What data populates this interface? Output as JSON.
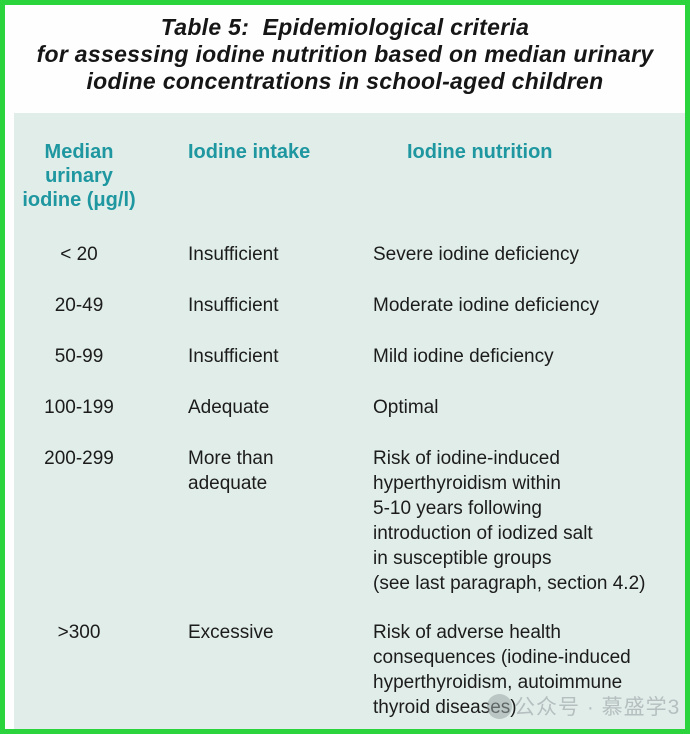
{
  "title": {
    "line1": "Table 5:  Epidemiological criteria",
    "line2": "for assessing iodine nutrition based on median urinary",
    "line3": "iodine concentrations in school-aged children"
  },
  "table": {
    "headers": {
      "col1": "Median\nurinary\niodine (μg/l)",
      "col2": "Iodine intake",
      "col3": "Iodine nutrition"
    },
    "rows": [
      {
        "mui": "< 20",
        "intake": "Insufficient",
        "nutrition": "Severe iodine deficiency"
      },
      {
        "mui": "20-49",
        "intake": "Insufficient",
        "nutrition": "Moderate iodine deficiency"
      },
      {
        "mui": "50-99",
        "intake": "Insufficient",
        "nutrition": "Mild iodine deficiency"
      },
      {
        "mui": "100-199",
        "intake": "Adequate",
        "nutrition": "Optimal"
      },
      {
        "mui": "200-299",
        "intake": "More than\nadequate",
        "nutrition": "Risk of iodine-induced\nhyperthyroidism within\n5-10 years following\nintroduction of iodized salt\nin susceptible groups\n(see last paragraph, section 4.2)"
      },
      {
        "mui": ">300",
        "intake": "Excessive",
        "nutrition": "Risk of adverse health\nconsequences (iodine-induced\nhyperthyroidism, autoimmune\nthyroid diseases)"
      }
    ]
  },
  "watermark": {
    "icon": "wechat-official-account-icon",
    "text": "公众号 · 慕盛学3"
  },
  "colors": {
    "frame_border_green": "#2bd43d",
    "panel_mint": "#e0ede9",
    "header_teal": "#1e97a0",
    "body_text": "#1c1c1c",
    "watermark_gray": "#b3bdbd"
  }
}
